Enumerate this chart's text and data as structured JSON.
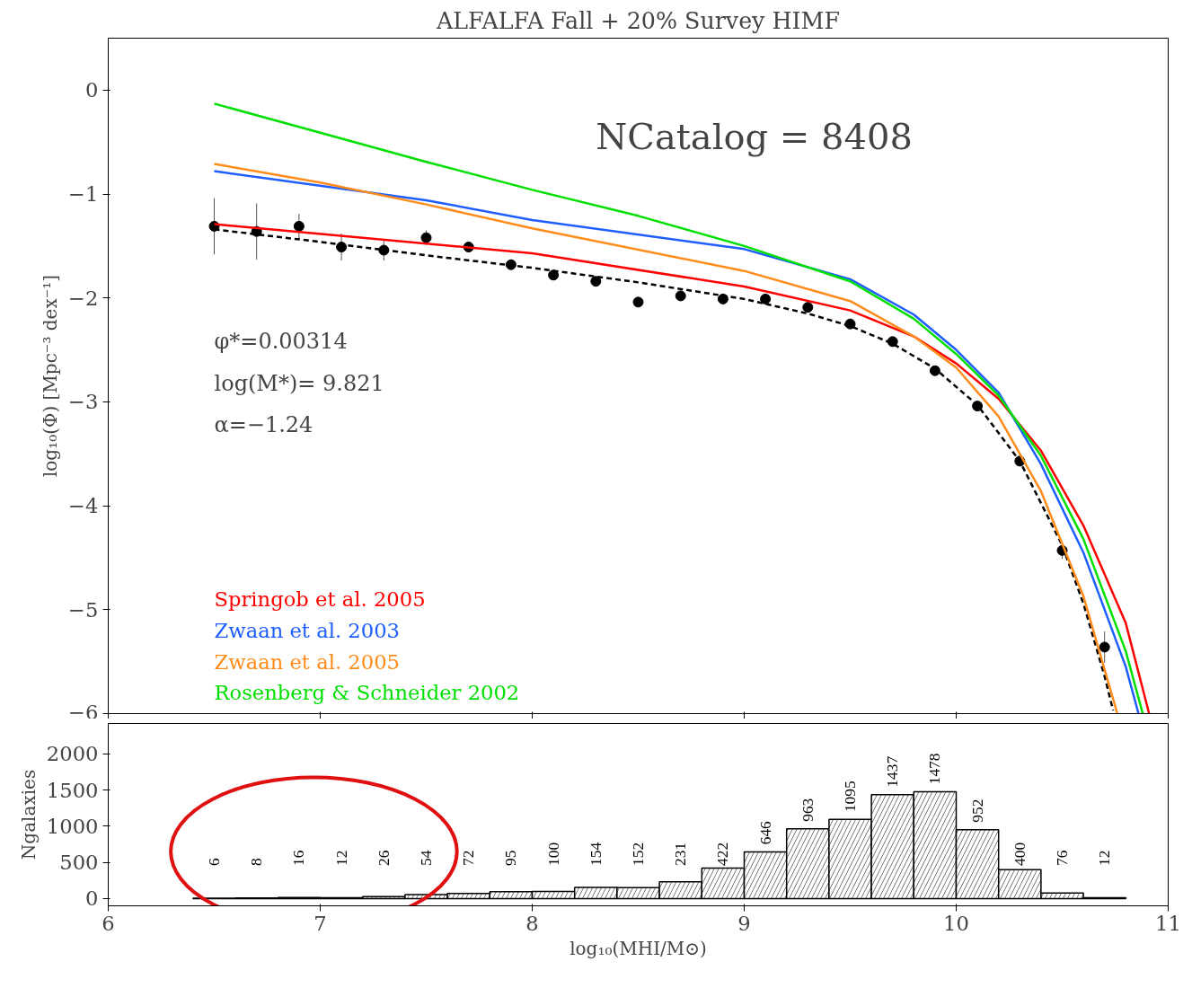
{
  "chart_data": [
    {
      "type": "scatter",
      "title": "ALFALFA Fall + 20% Survey HIMF",
      "ylabel": "log₁₀(Φ) [Mpc⁻³ dex⁻¹]",
      "xlim": [
        6,
        11
      ],
      "ylim": [
        -6,
        0.5
      ],
      "yticks": [
        0,
        -1,
        -2,
        -3,
        -4,
        -5,
        -6
      ],
      "tick_labels": "y",
      "grid": false,
      "legend": "bottom left",
      "annotations": [
        "NCatalog = 8408",
        "φ*=0.00314",
        "log(M*)= 9.821",
        "α=−1.24"
      ],
      "series": [
        {
          "type": "scatter",
          "color": "#000000",
          "marker": "circle",
          "x": [
            6.5,
            6.7,
            6.9,
            7.1,
            7.3,
            7.5,
            7.7,
            7.9,
            8.1,
            8.3,
            8.5,
            8.7,
            8.9,
            9.1,
            9.3,
            9.5,
            9.7,
            9.9,
            10.1,
            10.3,
            10.5,
            10.7
          ],
          "values": [
            -1.31,
            -1.36,
            -1.31,
            -1.51,
            -1.54,
            -1.42,
            -1.51,
            -1.68,
            -1.78,
            -1.84,
            -2.04,
            -1.98,
            -2.01,
            -2.01,
            -2.09,
            -2.25,
            -2.42,
            -2.7,
            -3.04,
            -3.57,
            -4.43,
            -5.36
          ],
          "errors": [
            0.27,
            0.27,
            0.12,
            0.13,
            0.1,
            0.07,
            0.05,
            0.04,
            0.04,
            0.04,
            0.04,
            0.04,
            0.03,
            0.03,
            0.03,
            0.03,
            0.03,
            0.03,
            0.04,
            0.05,
            0.08,
            0.15
          ]
        },
        {
          "type": "line",
          "color": "#000000",
          "line_style": "dashed",
          "x": [
            6.5,
            7.0,
            7.5,
            8.0,
            8.5,
            9.0,
            9.3,
            9.5,
            9.7,
            9.9,
            10.1,
            10.3,
            10.5,
            10.6,
            10.7,
            10.74
          ],
          "values": [
            -1.34,
            -1.46,
            -1.59,
            -1.71,
            -1.85,
            -2.01,
            -2.15,
            -2.27,
            -2.44,
            -2.68,
            -3.03,
            -3.57,
            -4.38,
            -4.94,
            -5.64,
            -5.97
          ]
        },
        {
          "type": "line",
          "name": "Springob et al. 2005",
          "color": "#ff0000",
          "line_style": "solid",
          "x": [
            6.5,
            8,
            9,
            9.5,
            9.8,
            10,
            10.2,
            10.4,
            10.6,
            10.8,
            10.91
          ],
          "values": [
            -1.29,
            -1.57,
            -1.89,
            -2.12,
            -2.37,
            -2.63,
            -2.97,
            -3.47,
            -4.19,
            -5.13,
            -6
          ]
        },
        {
          "type": "line",
          "name": "Zwaan et al. 2003",
          "color": "#1e5eff",
          "line_style": "solid",
          "x": [
            6.5,
            7.5,
            8,
            9,
            9.5,
            9.8,
            10,
            10.2,
            10.4,
            10.6,
            10.8,
            10.86
          ],
          "values": [
            -0.78,
            -1.06,
            -1.25,
            -1.53,
            -1.82,
            -2.16,
            -2.5,
            -2.91,
            -3.6,
            -4.45,
            -5.55,
            -6
          ]
        },
        {
          "type": "line",
          "name": "Zwaan et al. 2005",
          "color": "#ff8c1a",
          "line_style": "solid",
          "x": [
            6.5,
            7,
            7.5,
            8,
            9,
            9.5,
            9.8,
            10,
            10.2,
            10.4,
            10.6,
            10.76
          ],
          "values": [
            -0.71,
            -0.89,
            -1.1,
            -1.33,
            -1.74,
            -2.03,
            -2.37,
            -2.67,
            -3.14,
            -3.86,
            -4.87,
            -6
          ]
        },
        {
          "type": "line",
          "name": "Rosenberg & Schneider 2002",
          "color": "#00e000",
          "line_style": "solid",
          "x": [
            6.5,
            7,
            7.5,
            8,
            8.5,
            9,
            9.5,
            9.8,
            10,
            10.2,
            10.4,
            10.6,
            10.8,
            10.88
          ],
          "values": [
            -0.13,
            -0.41,
            -0.69,
            -0.96,
            -1.21,
            -1.5,
            -1.84,
            -2.2,
            -2.54,
            -2.94,
            -3.52,
            -4.32,
            -5.4,
            -6
          ]
        }
      ]
    },
    {
      "type": "histogram",
      "xlabel": "log₁₀(MHI/M⊙)",
      "ylabel": "Ngalaxies",
      "xlim": [
        6,
        11
      ],
      "xticks": [
        6,
        7,
        8,
        9,
        10,
        11
      ],
      "ylim": [
        -100,
        2420
      ],
      "yticks": [
        0,
        500,
        1000,
        1500,
        2000
      ],
      "grid": false,
      "data_labels": true,
      "color": "#000000",
      "bins": [
        6.4,
        6.6,
        6.8,
        7.0,
        7.2,
        7.4,
        7.6,
        7.8,
        8.0,
        8.2,
        8.4,
        8.6,
        8.8,
        9.0,
        9.2,
        9.4,
        9.6,
        9.8,
        10.0,
        10.2,
        10.4,
        10.6,
        10.8
      ],
      "values": [
        6,
        8,
        16,
        12,
        26,
        54,
        72,
        95,
        100,
        154,
        152,
        231,
        422,
        646,
        963,
        1095,
        1437,
        1478,
        952,
        400,
        76,
        12
      ]
    }
  ]
}
